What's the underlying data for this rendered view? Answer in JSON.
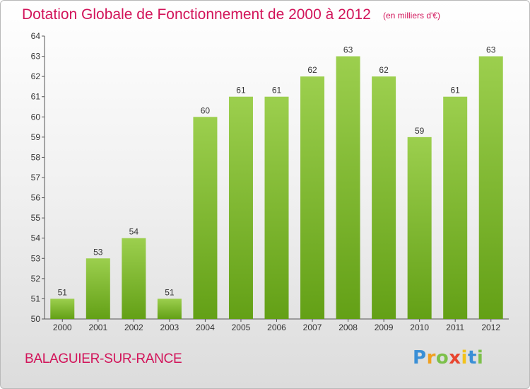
{
  "header": {
    "title": "Dotation Globale de Fonctionnement de 2000 à 2012",
    "unit": "(en milliers d'€)"
  },
  "footer": {
    "commune": "BALAGUIER-SUR-RANCE",
    "logo": "Proxiti"
  },
  "chart_data": {
    "type": "bar",
    "title": "Dotation Globale de Fonctionnement de 2000 à 2012",
    "subtitle": "(en milliers d'€)",
    "xlabel": "",
    "ylabel": "",
    "categories": [
      "2000",
      "2001",
      "2002",
      "2003",
      "2004",
      "2005",
      "2006",
      "2007",
      "2008",
      "2009",
      "2010",
      "2011",
      "2012"
    ],
    "values": [
      51,
      53,
      54,
      51,
      60,
      61,
      61,
      62,
      63,
      62,
      59,
      61,
      63
    ],
    "ylim": [
      50,
      64
    ],
    "yticks": [
      50,
      51,
      52,
      53,
      54,
      55,
      56,
      57,
      58,
      59,
      60,
      61,
      62,
      63,
      64
    ],
    "grid": false,
    "legend": "none",
    "colors": {
      "bar_light": "#9ccf4e",
      "bar_dark": "#63a016",
      "axis": "#555555",
      "text": "#333333",
      "accent": "#d2145a"
    }
  }
}
